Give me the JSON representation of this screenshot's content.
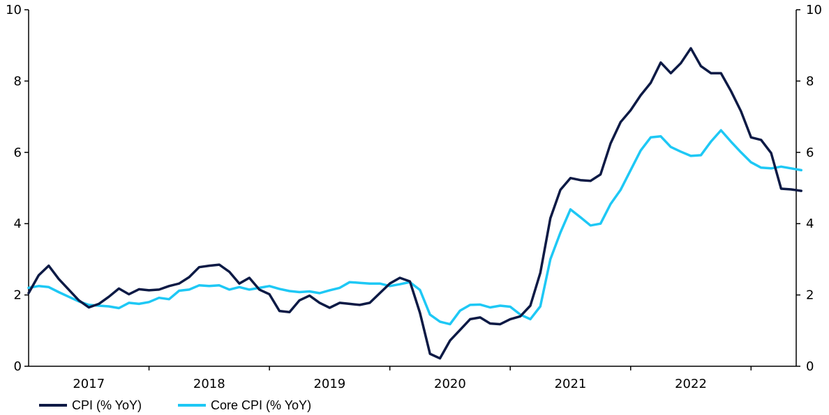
{
  "chart_data": {
    "type": "line",
    "title": "",
    "xlabel": "",
    "ylabel": "",
    "ylim": [
      0,
      10
    ],
    "yticks": [
      0,
      2,
      4,
      6,
      8,
      10
    ],
    "y_axis_left": true,
    "y_axis_right": true,
    "grid": false,
    "legend_position": "bottom-left",
    "xlim": [
      2016.5,
      2022.875
    ],
    "x_tick_labels": [
      {
        "label": "2017",
        "value": 2017
      },
      {
        "label": "2018",
        "value": 2018
      },
      {
        "label": "2019",
        "value": 2019
      },
      {
        "label": "2020",
        "value": 2020
      },
      {
        "label": "2021",
        "value": 2021
      },
      {
        "label": "2022",
        "value": 2022
      }
    ],
    "x": [
      "2016-07",
      "2016-08",
      "2016-09",
      "2016-10",
      "2016-11",
      "2016-12",
      "2017-01",
      "2017-02",
      "2017-03",
      "2017-04",
      "2017-05",
      "2017-06",
      "2017-07",
      "2017-08",
      "2017-09",
      "2017-10",
      "2017-11",
      "2017-12",
      "2018-01",
      "2018-02",
      "2018-03",
      "2018-04",
      "2018-05",
      "2018-06",
      "2018-07",
      "2018-08",
      "2018-09",
      "2018-10",
      "2018-11",
      "2018-12",
      "2019-01",
      "2019-02",
      "2019-03",
      "2019-04",
      "2019-05",
      "2019-06",
      "2019-07",
      "2019-08",
      "2019-09",
      "2019-10",
      "2019-11",
      "2019-12",
      "2020-01",
      "2020-02",
      "2020-03",
      "2020-04",
      "2020-05",
      "2020-06",
      "2020-07",
      "2020-08",
      "2020-09",
      "2020-10",
      "2020-11",
      "2020-12",
      "2021-01",
      "2021-02",
      "2021-03",
      "2021-04",
      "2021-05",
      "2021-06",
      "2021-07",
      "2021-08",
      "2021-09",
      "2021-10",
      "2021-11",
      "2021-12",
      "2022-01",
      "2022-02",
      "2022-03",
      "2022-04",
      "2022-05",
      "2022-06",
      "2022-07",
      "2022-08",
      "2022-09",
      "2022-10",
      "2022-11",
      "2022-12"
    ],
    "series": [
      {
        "name": "CPI (% YoY)",
        "color": "#0d1a45",
        "values": [
          2.05,
          2.55,
          2.82,
          2.45,
          2.15,
          1.85,
          1.65,
          1.75,
          1.95,
          2.18,
          2.02,
          2.16,
          2.13,
          2.15,
          2.25,
          2.32,
          2.5,
          2.78,
          2.82,
          2.85,
          2.65,
          2.32,
          2.48,
          2.15,
          2.02,
          1.55,
          1.52,
          1.85,
          1.98,
          1.78,
          1.64,
          1.78,
          1.75,
          1.72,
          1.78,
          2.05,
          2.32,
          2.48,
          2.38,
          1.5,
          0.35,
          0.22,
          0.72,
          1.02,
          1.32,
          1.37,
          1.2,
          1.18,
          1.32,
          1.4,
          1.7,
          2.62,
          4.15,
          4.95,
          5.28,
          5.22,
          5.2,
          5.38,
          6.25,
          6.85,
          7.18,
          7.6,
          7.95,
          8.52,
          8.22,
          8.5,
          8.92,
          8.42,
          8.22,
          8.22,
          7.72,
          7.15,
          6.42,
          6.35,
          5.98,
          4.98,
          4.96,
          4.92
        ]
      },
      {
        "name": "Core CPI (% YoY)",
        "color": "#1ec8f5",
        "values": [
          2.2,
          2.25,
          2.22,
          2.08,
          1.95,
          1.82,
          1.72,
          1.7,
          1.68,
          1.63,
          1.78,
          1.75,
          1.8,
          1.92,
          1.88,
          2.12,
          2.15,
          2.27,
          2.25,
          2.27,
          2.15,
          2.22,
          2.15,
          2.2,
          2.25,
          2.17,
          2.11,
          2.08,
          2.1,
          2.05,
          2.13,
          2.2,
          2.36,
          2.34,
          2.32,
          2.32,
          2.25,
          2.3,
          2.36,
          2.14,
          1.45,
          1.25,
          1.18,
          1.56,
          1.72,
          1.73,
          1.65,
          1.7,
          1.67,
          1.45,
          1.32,
          1.68,
          3.0,
          3.75,
          4.4,
          4.18,
          3.95,
          4.0,
          4.55,
          4.95,
          5.5,
          6.05,
          6.42,
          6.45,
          6.15,
          6.02,
          5.9,
          5.92,
          6.3,
          6.62,
          6.3,
          6.0,
          5.72,
          5.57,
          5.55,
          5.6,
          5.55,
          5.5
        ]
      }
    ]
  }
}
